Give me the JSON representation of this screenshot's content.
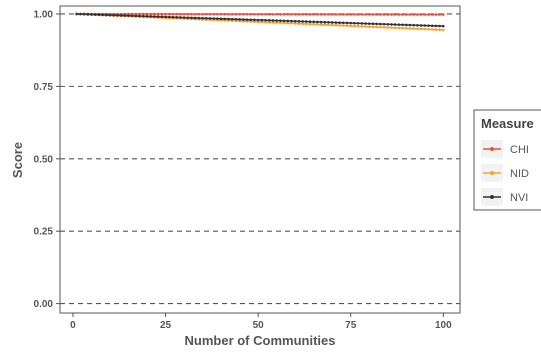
{
  "chart_data": {
    "type": "line",
    "title": "",
    "xlabel": "Number of Communities",
    "ylabel": "Score",
    "xlim": [
      -3.5,
      104.5
    ],
    "ylim": [
      -0.0325,
      1.0275
    ],
    "x_ticks": [
      0,
      25,
      50,
      75,
      100
    ],
    "x_tick_labels": [
      "0",
      "25",
      "50",
      "75",
      "100"
    ],
    "y_ticks": [
      0.0,
      0.25,
      0.5,
      0.75,
      1.0
    ],
    "y_tick_labels": [
      "0.00",
      "0.25",
      "0.50",
      "0.75",
      "1.00"
    ],
    "grid": "dashed horizontal",
    "legend_title": "Measure",
    "legend_position": "right",
    "series": [
      {
        "name": "CHI",
        "color": "#e5533d",
        "x_start": 1,
        "x_end": 100,
        "y_start": 1.0,
        "y_end": 0.998
      },
      {
        "name": "NID",
        "color": "#f5a130",
        "x_start": 1,
        "x_end": 100,
        "y_start": 1.0,
        "y_end": 0.945
      },
      {
        "name": "NVI",
        "color": "#333333",
        "x_start": 1,
        "x_end": 100,
        "y_start": 1.0,
        "y_end": 0.958
      }
    ]
  }
}
